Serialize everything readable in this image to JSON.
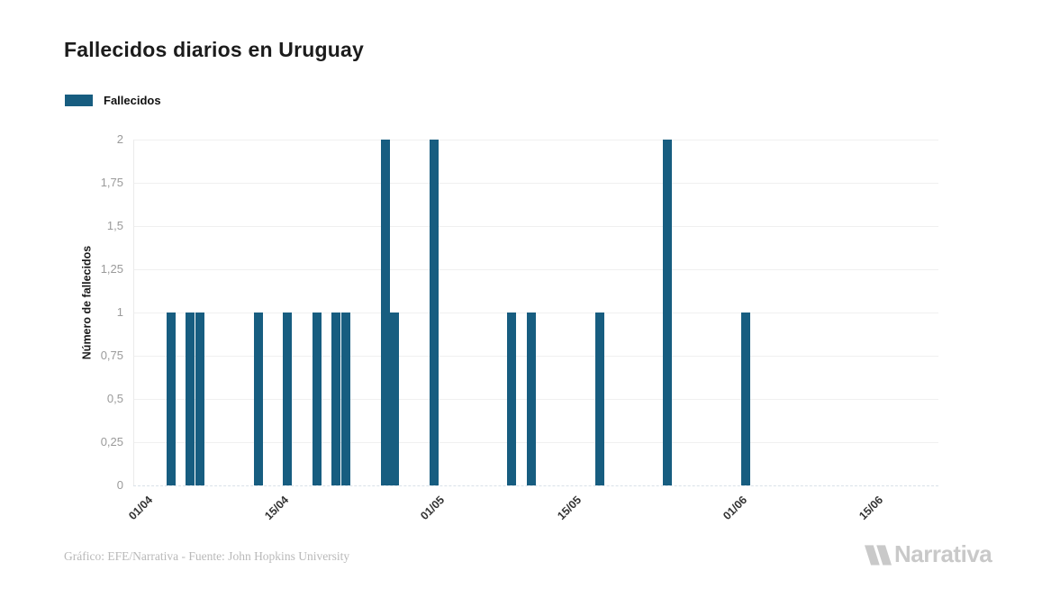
{
  "header": {
    "title": "Fallecidos diarios en Uruguay"
  },
  "legend": {
    "items": [
      {
        "label": "Fallecidos",
        "color": "#175d80"
      }
    ]
  },
  "chart_data": {
    "type": "bar",
    "title": "Fallecidos diarios en Uruguay",
    "xlabel": "",
    "ylabel": "Número de fallecidos",
    "ylim": [
      0,
      2
    ],
    "y_ticks": [
      "0",
      "0,25",
      "0,5",
      "0,75",
      "1",
      "1,25",
      "1,5",
      "1,75",
      "2"
    ],
    "x_ticks": [
      "01/04",
      "15/04",
      "01/05",
      "15/05",
      "01/06",
      "15/06"
    ],
    "x_range": {
      "start": "01/04",
      "end": "22/06"
    },
    "grid": "horizontal",
    "legend_position": "top-left",
    "decimal_separator": ",",
    "series": [
      {
        "name": "Fallecidos",
        "color": "#175d80",
        "points": [
          {
            "date": "04/04",
            "value": 1
          },
          {
            "date": "06/04",
            "value": 1
          },
          {
            "date": "07/04",
            "value": 1
          },
          {
            "date": "13/04",
            "value": 1
          },
          {
            "date": "16/04",
            "value": 1
          },
          {
            "date": "19/04",
            "value": 1
          },
          {
            "date": "21/04",
            "value": 1
          },
          {
            "date": "22/04",
            "value": 1
          },
          {
            "date": "26/04",
            "value": 2
          },
          {
            "date": "27/04",
            "value": 1
          },
          {
            "date": "01/05",
            "value": 2
          },
          {
            "date": "09/05",
            "value": 1
          },
          {
            "date": "11/05",
            "value": 1
          },
          {
            "date": "18/05",
            "value": 1
          },
          {
            "date": "25/05",
            "value": 2
          },
          {
            "date": "02/06",
            "value": 1
          }
        ]
      }
    ]
  },
  "footer": {
    "credit": "Gráfico: EFE/Narrativa - Fuente: John Hopkins University",
    "logo_text": "Narrativa",
    "logo_icon": "narrativa-n-mark",
    "brand_color": "#c9c9c9"
  }
}
